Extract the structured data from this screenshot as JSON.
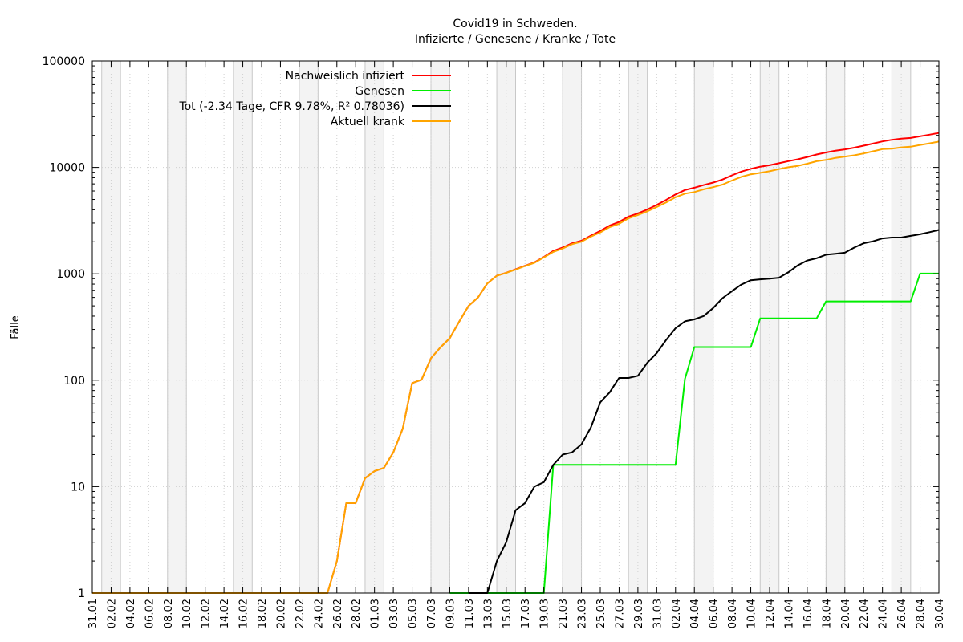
{
  "chart_data": {
    "type": "line",
    "title": "Covid19 in Schweden.",
    "subtitle": "Infizierte / Genesene / Kranke / Tote",
    "xlabel": "",
    "ylabel": "Fälle",
    "y_scale": "log",
    "ylim": [
      1,
      100000
    ],
    "y_ticks": [
      1,
      10,
      100,
      1000,
      10000,
      100000
    ],
    "y_tick_labels": [
      "1",
      "10",
      "100",
      "1000",
      "10000",
      "100000"
    ],
    "xlim": [
      "31.01",
      "30.04"
    ],
    "x_tick_labels": [
      "31.01",
      "02.02",
      "04.02",
      "06.02",
      "08.02",
      "10.02",
      "12.02",
      "14.02",
      "16.02",
      "18.02",
      "20.02",
      "22.02",
      "24.02",
      "26.02",
      "28.02",
      "01.03",
      "03.03",
      "05.03",
      "07.03",
      "09.03",
      "11.03",
      "13.03",
      "15.03",
      "17.03",
      "19.03",
      "21.03",
      "23.03",
      "25.03",
      "27.03",
      "29.03",
      "31.03",
      "02.04",
      "04.04",
      "06.04",
      "08.04",
      "10.04",
      "12.04",
      "14.04",
      "16.04",
      "18.04",
      "20.04",
      "22.04",
      "24.04",
      "26.04",
      "28.04",
      "30.04"
    ],
    "grid": true,
    "legend_position": "top-center",
    "weekend_shading": true,
    "series": [
      {
        "name": "Nachweislich infiziert",
        "color": "#ff0000",
        "points": [
          [
            "31.01",
            1
          ],
          [
            "25.02",
            1
          ],
          [
            "26.02",
            2
          ],
          [
            "27.02",
            7
          ],
          [
            "28.02",
            7
          ],
          [
            "29.02",
            12
          ],
          [
            "01.03",
            14
          ],
          [
            "02.03",
            15
          ],
          [
            "03.03",
            21
          ],
          [
            "04.03",
            35
          ],
          [
            "05.03",
            94
          ],
          [
            "06.03",
            101
          ],
          [
            "07.03",
            161
          ],
          [
            "08.03",
            203
          ],
          [
            "09.03",
            248
          ],
          [
            "10.03",
            355
          ],
          [
            "11.03",
            500
          ],
          [
            "12.03",
            599
          ],
          [
            "13.03",
            814
          ],
          [
            "14.03",
            961
          ],
          [
            "15.03",
            1022
          ],
          [
            "16.03",
            1103
          ],
          [
            "17.03",
            1190
          ],
          [
            "18.03",
            1279
          ],
          [
            "19.03",
            1439
          ],
          [
            "20.03",
            1639
          ],
          [
            "21.03",
            1763
          ],
          [
            "22.03",
            1934
          ],
          [
            "23.03",
            2046
          ],
          [
            "24.03",
            2286
          ],
          [
            "25.03",
            2526
          ],
          [
            "26.03",
            2840
          ],
          [
            "27.03",
            3069
          ],
          [
            "28.03",
            3447
          ],
          [
            "29.03",
            3700
          ],
          [
            "30.03",
            4028
          ],
          [
            "31.03",
            4435
          ],
          [
            "01.04",
            4947
          ],
          [
            "02.04",
            5568
          ],
          [
            "03.04",
            6131
          ],
          [
            "04.04",
            6443
          ],
          [
            "05.04",
            6830
          ],
          [
            "06.04",
            7206
          ],
          [
            "07.04",
            7693
          ],
          [
            "08.04",
            8419
          ],
          [
            "09.04",
            9141
          ],
          [
            "10.04",
            9685
          ],
          [
            "11.04",
            10151
          ],
          [
            "12.04",
            10483
          ],
          [
            "13.04",
            10948
          ],
          [
            "14.04",
            11445
          ],
          [
            "15.04",
            11927
          ],
          [
            "16.04",
            12540
          ],
          [
            "17.04",
            13216
          ],
          [
            "18.04",
            13822
          ],
          [
            "19.04",
            14385
          ],
          [
            "20.04",
            14777
          ],
          [
            "21.04",
            15322
          ],
          [
            "22.04",
            16004
          ],
          [
            "23.04",
            16755
          ],
          [
            "24.04",
            17567
          ],
          [
            "25.04",
            18177
          ],
          [
            "26.04",
            18640
          ],
          [
            "27.04",
            18926
          ],
          [
            "28.04",
            19621
          ],
          [
            "29.04",
            20302
          ],
          [
            "30.04",
            21092
          ]
        ]
      },
      {
        "name": "Genesen",
        "color": "#00ee00",
        "points": [
          [
            "09.03",
            1
          ],
          [
            "13.03",
            1
          ],
          [
            "19.03",
            1
          ],
          [
            "20.03",
            16
          ],
          [
            "02.04",
            16
          ],
          [
            "03.04",
            103
          ],
          [
            "04.04",
            205
          ],
          [
            "10.04",
            205
          ],
          [
            "11.04",
            381
          ],
          [
            "17.04",
            381
          ],
          [
            "18.04",
            550
          ],
          [
            "27.04",
            550
          ],
          [
            "28.04",
            1005
          ],
          [
            "30.04",
            1005
          ]
        ]
      },
      {
        "name": "Tot (-2.34 Tage, CFR 9.78%, R² 0.78036)",
        "color": "#000000",
        "points": [
          [
            "11.03",
            1
          ],
          [
            "13.03",
            1
          ],
          [
            "14.03",
            2
          ],
          [
            "15.03",
            3
          ],
          [
            "16.03",
            6
          ],
          [
            "17.03",
            7
          ],
          [
            "18.03",
            10
          ],
          [
            "19.03",
            11
          ],
          [
            "20.03",
            16
          ],
          [
            "21.03",
            20
          ],
          [
            "22.03",
            21
          ],
          [
            "23.03",
            25
          ],
          [
            "24.03",
            36
          ],
          [
            "25.03",
            62
          ],
          [
            "26.03",
            77
          ],
          [
            "27.03",
            105
          ],
          [
            "28.03",
            105
          ],
          [
            "29.03",
            110
          ],
          [
            "30.03",
            146
          ],
          [
            "31.03",
            180
          ],
          [
            "01.04",
            239
          ],
          [
            "02.04",
            308
          ],
          [
            "03.04",
            358
          ],
          [
            "04.04",
            373
          ],
          [
            "05.04",
            401
          ],
          [
            "06.04",
            477
          ],
          [
            "07.04",
            591
          ],
          [
            "08.04",
            687
          ],
          [
            "09.04",
            793
          ],
          [
            "10.04",
            870
          ],
          [
            "11.04",
            887
          ],
          [
            "12.04",
            899
          ],
          [
            "13.04",
            919
          ],
          [
            "14.04",
            1033
          ],
          [
            "15.04",
            1203
          ],
          [
            "16.04",
            1333
          ],
          [
            "17.04",
            1400
          ],
          [
            "18.04",
            1511
          ],
          [
            "19.04",
            1540
          ],
          [
            "20.04",
            1580
          ],
          [
            "21.04",
            1765
          ],
          [
            "22.04",
            1937
          ],
          [
            "23.04",
            2021
          ],
          [
            "24.04",
            2152
          ],
          [
            "25.04",
            2192
          ],
          [
            "26.04",
            2194
          ],
          [
            "27.04",
            2274
          ],
          [
            "28.04",
            2355
          ],
          [
            "29.04",
            2462
          ],
          [
            "30.04",
            2586
          ]
        ]
      },
      {
        "name": "Aktuell krank",
        "color": "#ffa500",
        "points": [
          [
            "31.01",
            1
          ],
          [
            "25.02",
            1
          ],
          [
            "26.02",
            2
          ],
          [
            "27.02",
            7
          ],
          [
            "28.02",
            7
          ],
          [
            "29.02",
            12
          ],
          [
            "01.03",
            14
          ],
          [
            "02.03",
            15
          ],
          [
            "03.03",
            21
          ],
          [
            "04.03",
            35
          ],
          [
            "05.03",
            94
          ],
          [
            "06.03",
            101
          ],
          [
            "07.03",
            161
          ],
          [
            "08.03",
            203
          ],
          [
            "09.03",
            248
          ],
          [
            "10.03",
            355
          ],
          [
            "11.03",
            500
          ],
          [
            "12.03",
            599
          ],
          [
            "13.03",
            814
          ],
          [
            "14.03",
            959
          ],
          [
            "15.03",
            1019
          ],
          [
            "16.03",
            1097
          ],
          [
            "17.03",
            1183
          ],
          [
            "18.03",
            1269
          ],
          [
            "19.03",
            1428
          ],
          [
            "20.03",
            1607
          ],
          [
            "21.03",
            1727
          ],
          [
            "22.03",
            1897
          ],
          [
            "23.03",
            2005
          ],
          [
            "24.03",
            2234
          ],
          [
            "25.03",
            2448
          ],
          [
            "26.03",
            2747
          ],
          [
            "27.03",
            2948
          ],
          [
            "28.03",
            3326
          ],
          [
            "29.03",
            3574
          ],
          [
            "30.03",
            3866
          ],
          [
            "31.03",
            4239
          ],
          [
            "01.04",
            4692
          ],
          [
            "02.04",
            5244
          ],
          [
            "03.04",
            5670
          ],
          [
            "04.04",
            5865
          ],
          [
            "05.04",
            6224
          ],
          [
            "06.04",
            6524
          ],
          [
            "07.04",
            6897
          ],
          [
            "08.04",
            7527
          ],
          [
            "09.04",
            8143
          ],
          [
            "10.04",
            8610
          ],
          [
            "11.04",
            8883
          ],
          [
            "12.04",
            9203
          ],
          [
            "13.04",
            9648
          ],
          [
            "14.04",
            10031
          ],
          [
            "15.04",
            10343
          ],
          [
            "16.04",
            10826
          ],
          [
            "17.04",
            11435
          ],
          [
            "18.04",
            11761
          ],
          [
            "19.04",
            12294
          ],
          [
            "20.04",
            12647
          ],
          [
            "21.04",
            13007
          ],
          [
            "22.04",
            13517
          ],
          [
            "23.04",
            14184
          ],
          [
            "24.04",
            14865
          ],
          [
            "25.04",
            14980
          ],
          [
            "26.04",
            15441
          ],
          [
            "27.04",
            15652
          ],
          [
            "28.04",
            16261
          ],
          [
            "29.04",
            16842
          ],
          [
            "30.04",
            17501
          ]
        ]
      }
    ]
  }
}
